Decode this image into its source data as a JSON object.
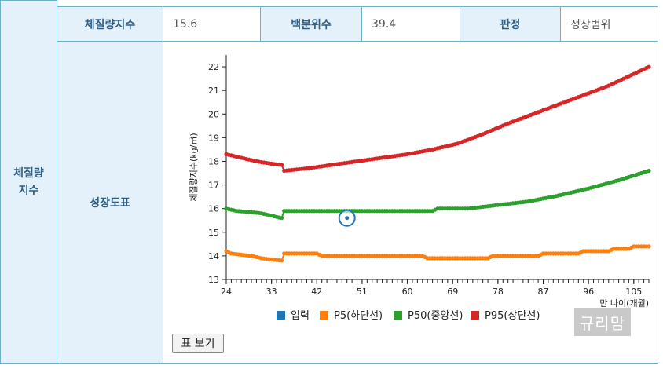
{
  "side_label": {
    "line1": "체질량",
    "line2": "지수"
  },
  "summary": {
    "bmi_label": "체질량지수",
    "bmi_value": "15.6",
    "pct_label": "백분위수",
    "pct_value": "39.4",
    "judge_label": "판정",
    "judge_value": "정상범위"
  },
  "growth_label": "성장도표",
  "table_button": "표 보기",
  "watermark": "규리맘",
  "colors": {
    "input": "#1f77b4",
    "p5": "#ff7f0e",
    "p50": "#2ca02c",
    "p95": "#d62728"
  },
  "chart_data": {
    "type": "line",
    "ylabel": "체질량지수(kg/㎡)",
    "xlabel": "만 나이(개월)",
    "xlim": [
      24,
      108
    ],
    "ylim": [
      13,
      22.5
    ],
    "xticks": [
      24,
      33,
      42,
      51,
      60,
      69,
      78,
      87,
      96,
      105
    ],
    "yticks": [
      13,
      14,
      15,
      16,
      17,
      18,
      19,
      20,
      21,
      22
    ],
    "legend": [
      "입력",
      "P5(하단선)",
      "P50(중앙선)",
      "P95(상단선)"
    ],
    "input_point": {
      "x": 48,
      "y": 15.6
    },
    "series": [
      {
        "name": "P5(하단선)",
        "anchors": [
          [
            24,
            14.2
          ],
          [
            25,
            14.1
          ],
          [
            27,
            14.05
          ],
          [
            29,
            14.0
          ],
          [
            31,
            13.9
          ],
          [
            33,
            13.85
          ],
          [
            35,
            13.8
          ],
          [
            35.5,
            14.1
          ],
          [
            38,
            14.1
          ],
          [
            42,
            14.1
          ],
          [
            43,
            14.0
          ],
          [
            55,
            14.0
          ],
          [
            63,
            14.0
          ],
          [
            64,
            13.9
          ],
          [
            76,
            13.9
          ],
          [
            77,
            14.0
          ],
          [
            86,
            14.0
          ],
          [
            87,
            14.1
          ],
          [
            94,
            14.1
          ],
          [
            95,
            14.2
          ],
          [
            100,
            14.2
          ],
          [
            101,
            14.3
          ],
          [
            104,
            14.3
          ],
          [
            105,
            14.4
          ],
          [
            108,
            14.4
          ]
        ]
      },
      {
        "name": "P50(중앙선)",
        "anchors": [
          [
            24,
            16.0
          ],
          [
            26,
            15.9
          ],
          [
            29,
            15.85
          ],
          [
            31,
            15.8
          ],
          [
            33,
            15.7
          ],
          [
            35,
            15.6
          ],
          [
            35.5,
            15.9
          ],
          [
            45,
            15.9
          ],
          [
            55,
            15.9
          ],
          [
            65,
            15.9
          ],
          [
            66,
            16.0
          ],
          [
            72,
            16.0
          ],
          [
            78,
            16.15
          ],
          [
            84,
            16.3
          ],
          [
            90,
            16.55
          ],
          [
            96,
            16.85
          ],
          [
            102,
            17.2
          ],
          [
            108,
            17.6
          ]
        ]
      },
      {
        "name": "P95(상단선)",
        "anchors": [
          [
            24,
            18.3
          ],
          [
            26,
            18.2
          ],
          [
            28,
            18.1
          ],
          [
            30,
            18.0
          ],
          [
            33,
            17.9
          ],
          [
            35,
            17.85
          ],
          [
            35.5,
            17.6
          ],
          [
            40,
            17.7
          ],
          [
            45,
            17.85
          ],
          [
            50,
            18.0
          ],
          [
            55,
            18.15
          ],
          [
            60,
            18.3
          ],
          [
            65,
            18.5
          ],
          [
            70,
            18.75
          ],
          [
            75,
            19.15
          ],
          [
            80,
            19.6
          ],
          [
            85,
            20.0
          ],
          [
            90,
            20.4
          ],
          [
            95,
            20.8
          ],
          [
            100,
            21.2
          ],
          [
            105,
            21.7
          ],
          [
            108,
            22.0
          ]
        ]
      }
    ]
  }
}
